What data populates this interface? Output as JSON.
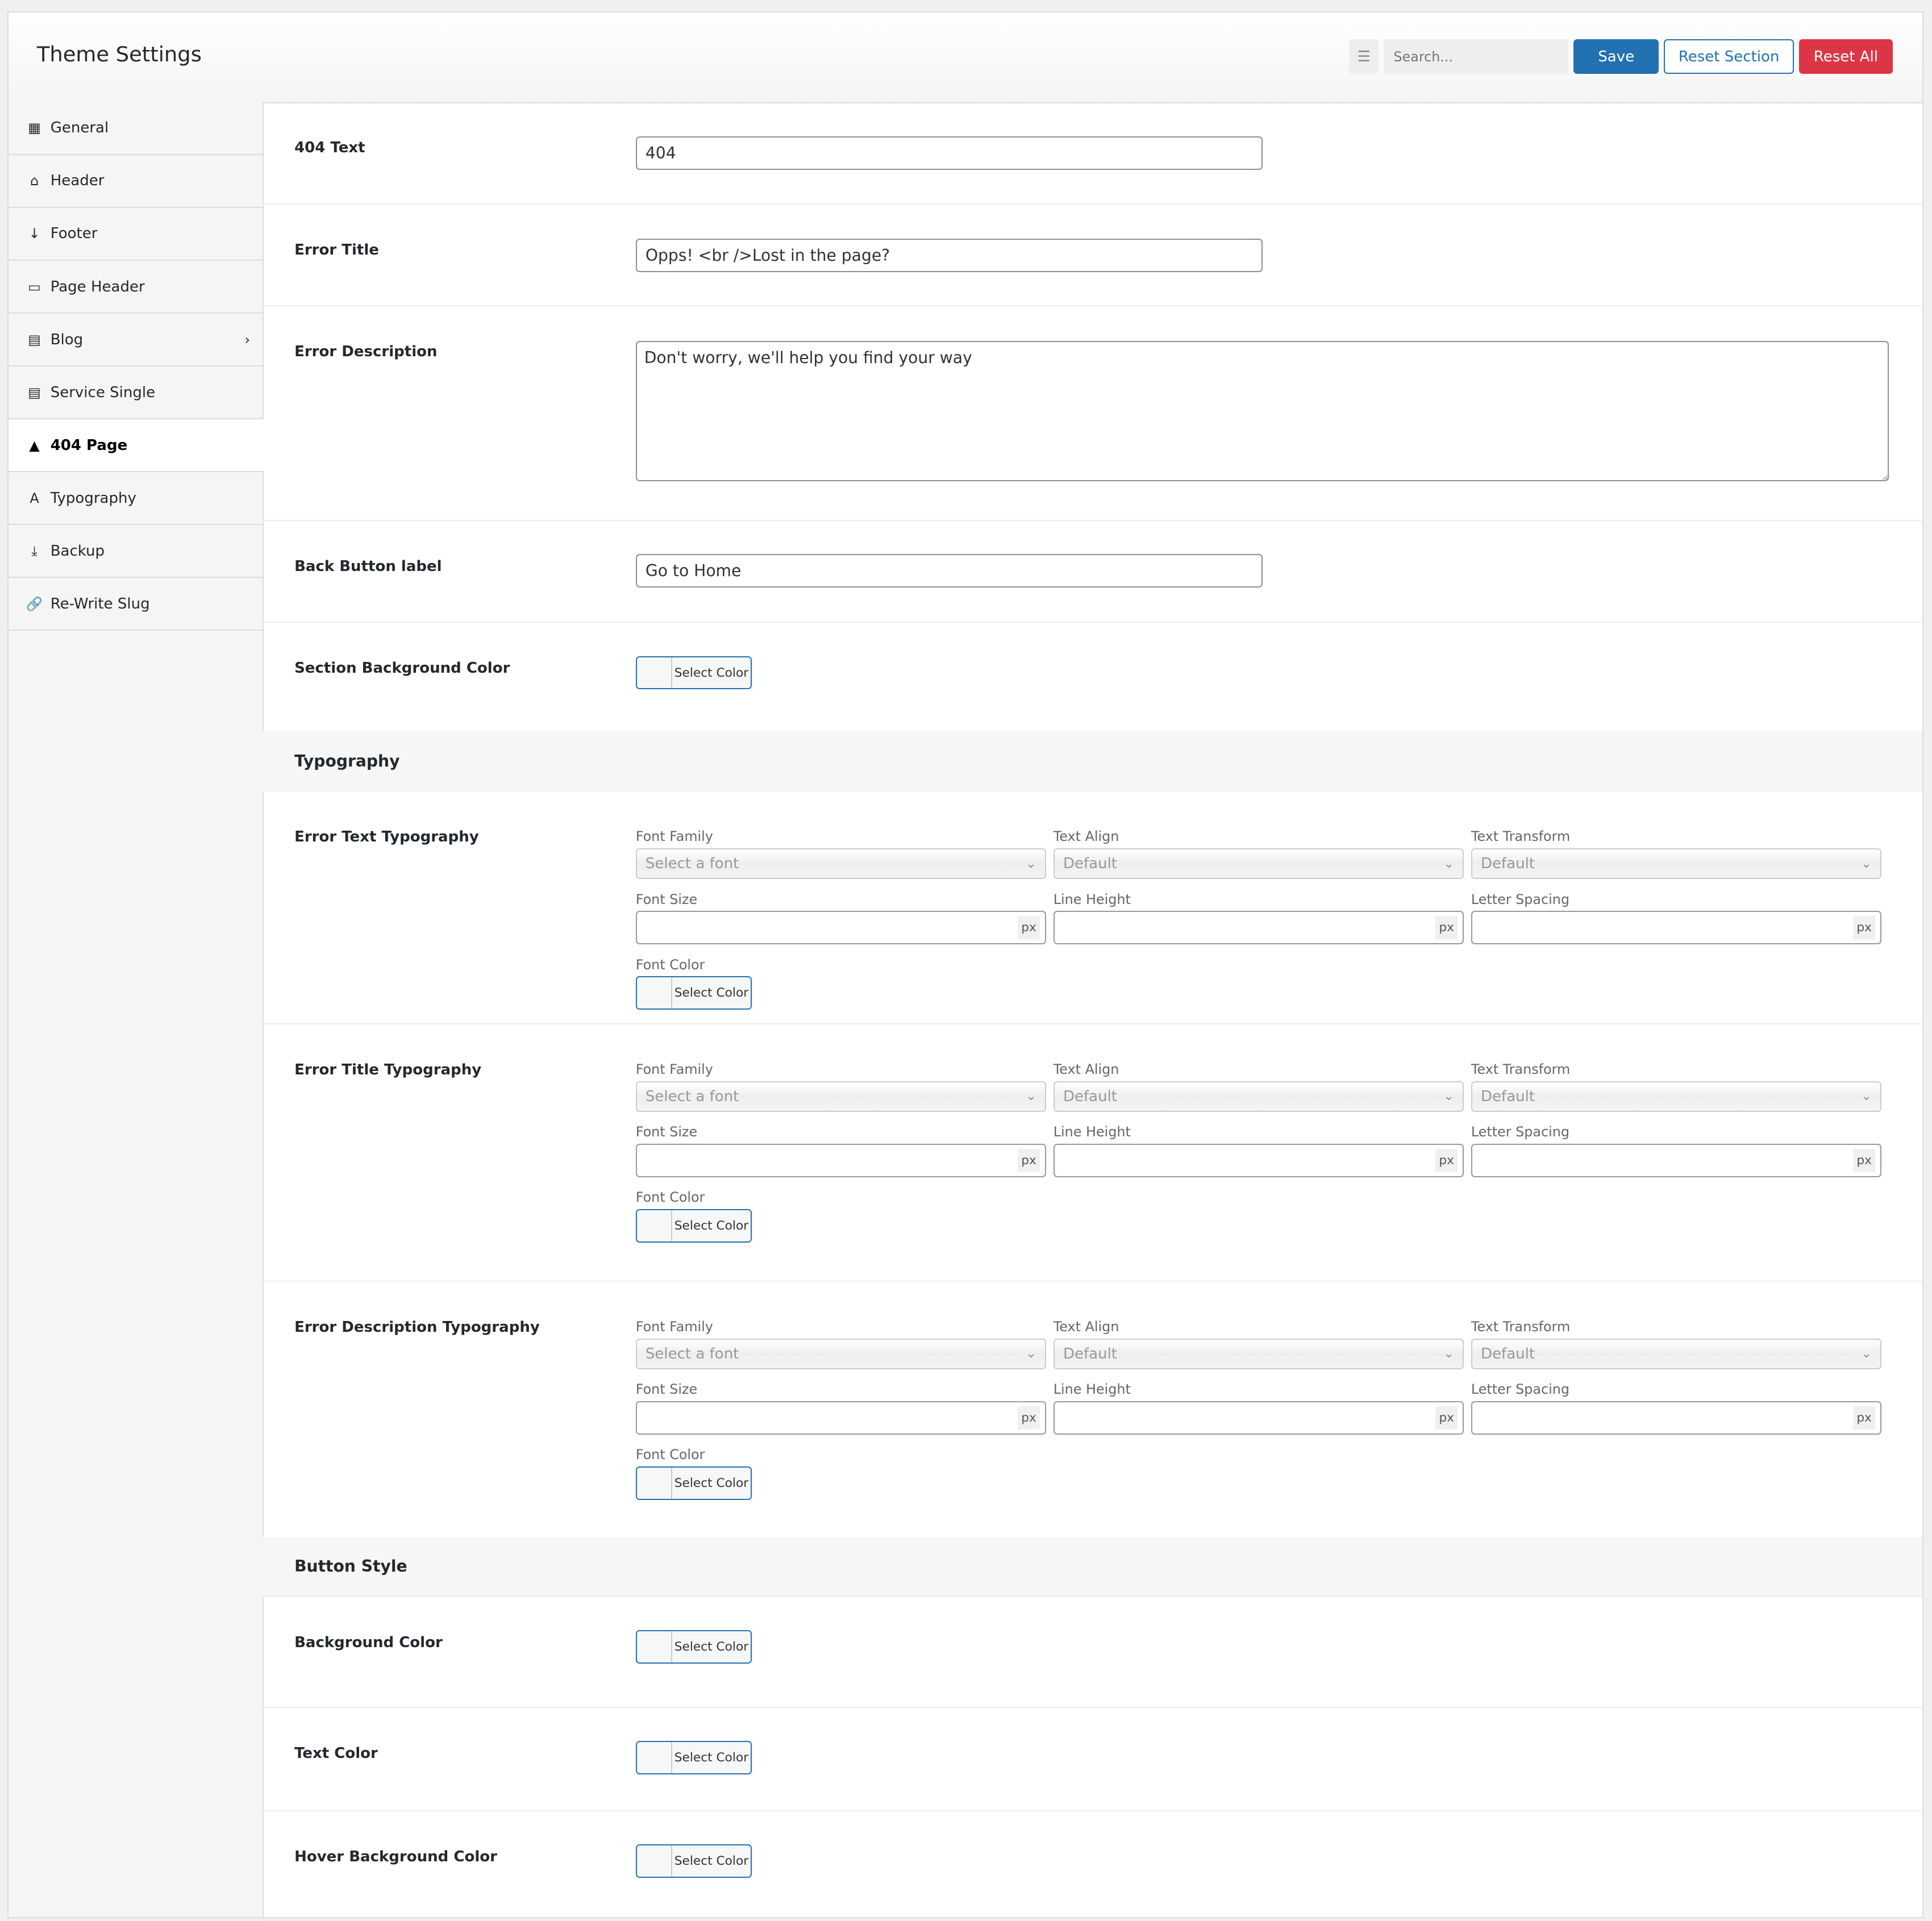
{
  "header": {
    "title": "Theme Settings",
    "search_placeholder": "Search...",
    "save_label": "Save",
    "reset_section_label": "Reset Section",
    "reset_all_label": "Reset All"
  },
  "sidebar": {
    "items": [
      {
        "label": "General",
        "icon": "building-icon",
        "glyph": "▦"
      },
      {
        "label": "Header",
        "icon": "home-icon",
        "glyph": "⌂"
      },
      {
        "label": "Footer",
        "icon": "arrow-down-icon",
        "glyph": "↓"
      },
      {
        "label": "Page Header",
        "icon": "image-icon",
        "glyph": "▭"
      },
      {
        "label": "Blog",
        "icon": "document-icon",
        "glyph": "▤",
        "has_children": true
      },
      {
        "label": "Service Single",
        "icon": "document-icon",
        "glyph": "▤"
      },
      {
        "label": "404 Page",
        "icon": "warning-icon",
        "glyph": "▲",
        "active": true
      },
      {
        "label": "Typography",
        "icon": "font-icon",
        "glyph": "A"
      },
      {
        "label": "Backup",
        "icon": "download-icon",
        "glyph": "⤓"
      },
      {
        "label": "Re-Write Slug",
        "icon": "link-icon",
        "glyph": "🔗"
      }
    ]
  },
  "fields": {
    "text_404": {
      "label": "404 Text",
      "value": "404"
    },
    "error_title": {
      "label": "Error Title",
      "value": "Opps! <br />Lost in the page?"
    },
    "error_description": {
      "label": "Error Description",
      "value": "Don't worry, we'll help you find your way"
    },
    "back_button_label": {
      "label": "Back Button label",
      "value": "Go to Home"
    },
    "section_bg_color": {
      "label": "Section Background Color",
      "button": "Select Color"
    }
  },
  "typography_heading": "Typography",
  "typography_labels": {
    "font_family": "Font Family",
    "text_align": "Text Align",
    "text_transform": "Text Transform",
    "font_size": "Font Size",
    "line_height": "Line Height",
    "letter_spacing": "Letter Spacing",
    "font_color": "Font Color",
    "font_placeholder": "Select a font",
    "default": "Default",
    "unit": "px",
    "select_color": "Select Color"
  },
  "typography_blocks": [
    {
      "label": "Error Text Typography"
    },
    {
      "label": "Error Title Typography"
    },
    {
      "label": "Error Description Typography"
    }
  ],
  "button_style": {
    "heading": "Button Style",
    "fields": [
      {
        "label": "Background Color",
        "button": "Select Color"
      },
      {
        "label": "Text Color",
        "button": "Select Color"
      },
      {
        "label": "Hover Background Color",
        "button": "Select Color"
      }
    ]
  },
  "colors": {
    "primary": "#2271b1",
    "danger": "#dc3545"
  }
}
